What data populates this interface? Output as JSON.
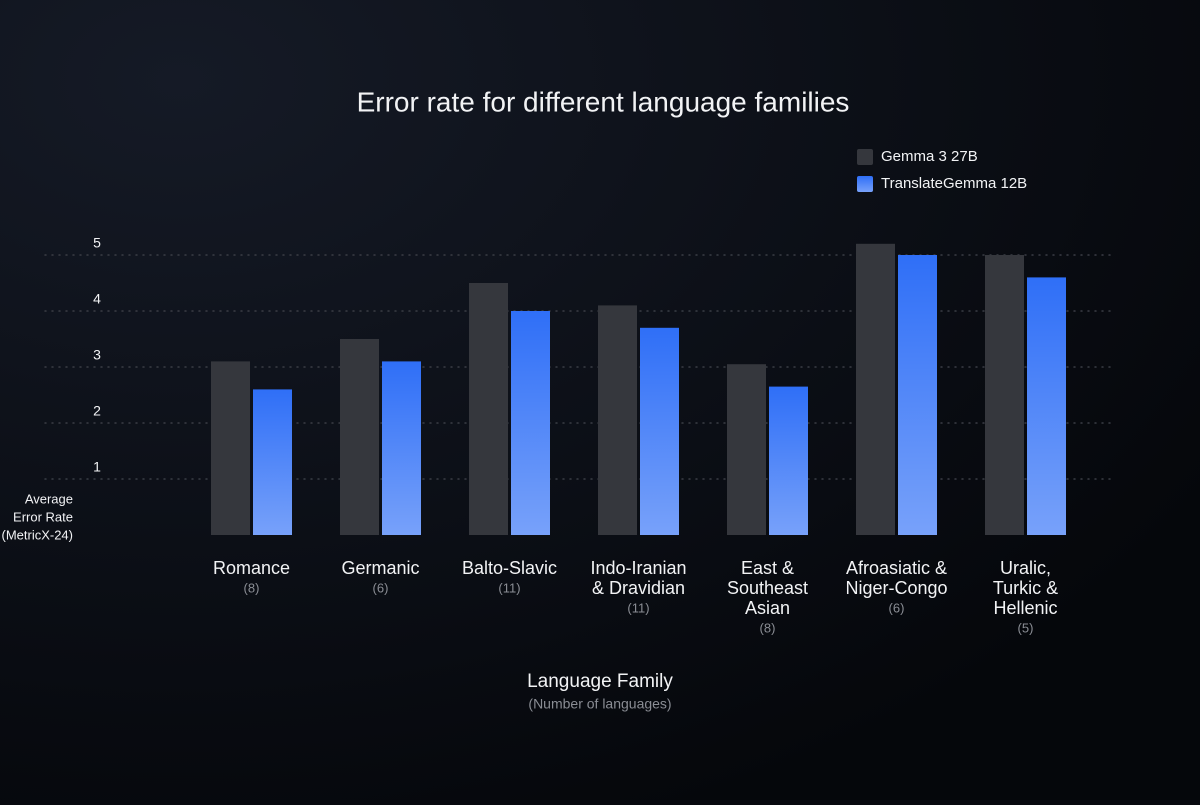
{
  "chart_data": {
    "type": "bar",
    "title": "Error rate for different language families",
    "categories": [
      [
        "Romance"
      ],
      [
        "Germanic"
      ],
      [
        "Balto-Slavic"
      ],
      [
        "Indo-Iranian",
        "& Dravidian"
      ],
      [
        "East &",
        "Southeast",
        "Asian"
      ],
      [
        "Afroasiatic &",
        "Niger-Congo"
      ],
      [
        "Uralic,",
        "Turkic &",
        "Hellenic"
      ]
    ],
    "category_notes": [
      "(8)",
      "(6)",
      "(11)",
      "(11)",
      "(8)",
      "(6)",
      "(5)"
    ],
    "series": [
      {
        "name": "Gemma 3 27B",
        "color": "#35373d",
        "values": [
          3.1,
          3.5,
          4.5,
          4.1,
          3.05,
          5.2,
          5.0
        ]
      },
      {
        "name": "TranslateGemma 12B",
        "color": "#2f6ff7",
        "values": [
          2.6,
          3.1,
          4.0,
          3.7,
          2.65,
          5.0,
          4.6
        ]
      }
    ],
    "ylim": [
      0,
      5.5
    ],
    "yticks": [
      1,
      2,
      3,
      4,
      5
    ],
    "grid": true,
    "y_label": [
      "Average",
      "Error Rate",
      "(MetricX-24)"
    ],
    "x_label": "Language Family",
    "x_sublabel": "(Number of languages)"
  }
}
